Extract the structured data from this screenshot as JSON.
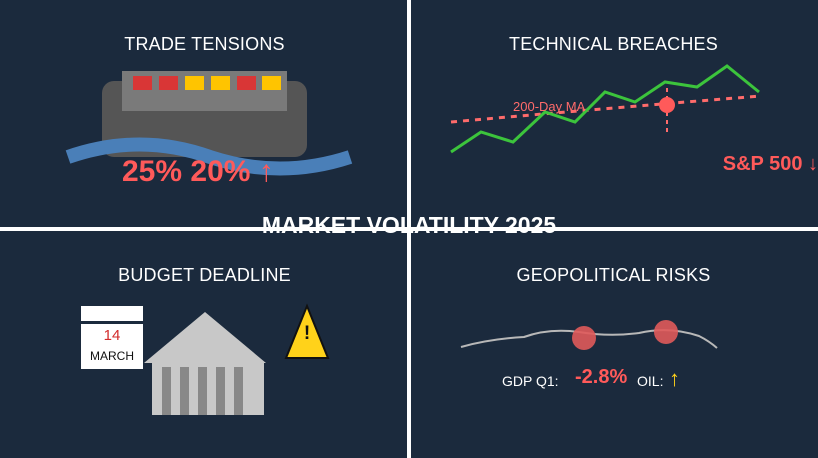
{
  "title": "MARKET VOLATILITY 2025",
  "trade": {
    "title": "TRADE TENSIONS",
    "tariffs": "25% 20% ↑",
    "container_colors": [
      "#d93636",
      "#d93636",
      "#ffc400",
      "#ffc400",
      "#d93636",
      "#ffc400"
    ]
  },
  "technical": {
    "title": "TECHNICAL BREACHES",
    "ma_label": "200-Day MA",
    "index_label": "S&P 500 ↓"
  },
  "budget": {
    "title": "BUDGET DEADLINE",
    "calendar_day": "14",
    "calendar_month": "MARCH",
    "warning_symbol": "!"
  },
  "geo": {
    "title": "GEOPOLITICAL RISKS",
    "gdp_label": "GDP Q1:",
    "gdp_value": "-2.8%",
    "oil_label": "OIL:",
    "oil_arrow": "↑"
  },
  "colors": {
    "background": "#1b2a3d",
    "alert_red": "#ff5a5a",
    "line_green": "#3cc43c",
    "warning_yellow": "#ffd21a"
  }
}
